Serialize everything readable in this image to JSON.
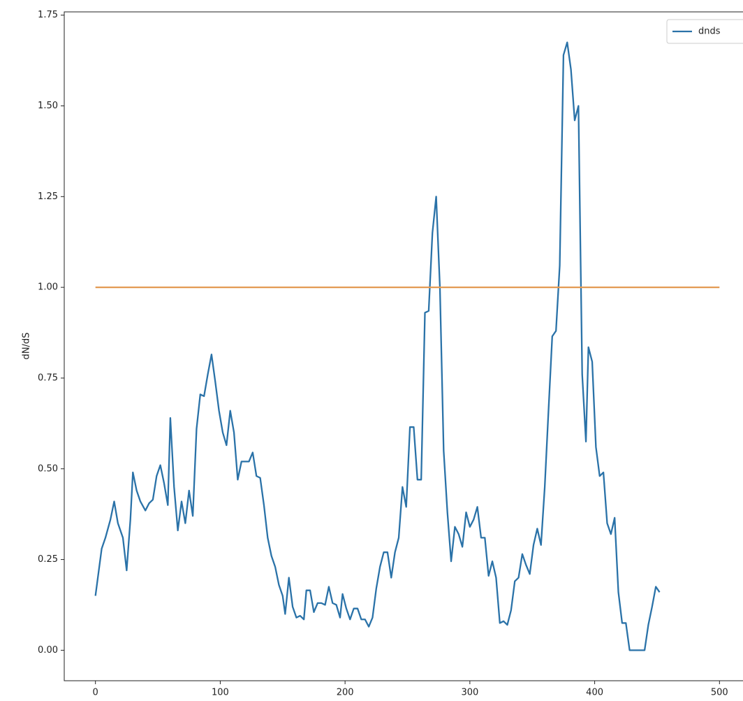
{
  "chart_data": {
    "type": "line",
    "ylabel": "dN/dS",
    "xlim": [
      -25,
      525
    ],
    "ylim": [
      -0.084,
      1.759
    ],
    "xticks": [
      0,
      100,
      200,
      300,
      400,
      500
    ],
    "yticks": [
      {
        "value": 0,
        "label": "0.00"
      },
      {
        "value": 0.25,
        "label": "0.25"
      },
      {
        "value": 0.5,
        "label": "0.50"
      },
      {
        "value": 0.75,
        "label": "0.75"
      },
      {
        "value": 1,
        "label": "1.00"
      },
      {
        "value": 1.25,
        "label": "1.25"
      },
      {
        "value": 1.5,
        "label": "1.50"
      },
      {
        "value": 1.75,
        "label": "1.75"
      }
    ],
    "legend": "upper right",
    "series": [
      {
        "name": "dnds",
        "color": "#2a72a8",
        "x": [
          0,
          5,
          8,
          12,
          15,
          18,
          22,
          25,
          28,
          30,
          33,
          36,
          40,
          43,
          46,
          49,
          52,
          55,
          58,
          60,
          63,
          66,
          69,
          72,
          75,
          78,
          81,
          84,
          87,
          90,
          93,
          96,
          99,
          102,
          105,
          108,
          111,
          114,
          117,
          120,
          123,
          126,
          129,
          132,
          135,
          138,
          141,
          144,
          147,
          150,
          152,
          155,
          158,
          161,
          164,
          167,
          169,
          172,
          175,
          178,
          181,
          184,
          187,
          190,
          193,
          196,
          198,
          201,
          204,
          207,
          210,
          213,
          216,
          219,
          222,
          225,
          228,
          231,
          234,
          237,
          240,
          243,
          246,
          249,
          252,
          255,
          258,
          261,
          264,
          267,
          270,
          273,
          276,
          279,
          282,
          285,
          288,
          291,
          294,
          297,
          300,
          303,
          306,
          309,
          312,
          315,
          318,
          321,
          324,
          327,
          330,
          333,
          336,
          339,
          342,
          345,
          348,
          351,
          354,
          357,
          360,
          363,
          366,
          369,
          372,
          375,
          378,
          381,
          384,
          387,
          390,
          393,
          395,
          398,
          401,
          404,
          407,
          410,
          413,
          416,
          419,
          422,
          425,
          428,
          431,
          434,
          437,
          440,
          443,
          446,
          449,
          452
        ],
        "values": [
          0.15,
          0.28,
          0.31,
          0.36,
          0.41,
          0.35,
          0.31,
          0.22,
          0.36,
          0.49,
          0.44,
          0.41,
          0.385,
          0.405,
          0.415,
          0.48,
          0.51,
          0.46,
          0.4,
          0.64,
          0.45,
          0.33,
          0.41,
          0.35,
          0.44,
          0.37,
          0.61,
          0.705,
          0.7,
          0.76,
          0.815,
          0.74,
          0.66,
          0.6,
          0.565,
          0.66,
          0.6,
          0.47,
          0.52,
          0.52,
          0.52,
          0.545,
          0.48,
          0.475,
          0.4,
          0.31,
          0.26,
          0.23,
          0.18,
          0.15,
          0.1,
          0.2,
          0.12,
          0.09,
          0.095,
          0.085,
          0.165,
          0.165,
          0.105,
          0.13,
          0.13,
          0.125,
          0.175,
          0.13,
          0.125,
          0.09,
          0.155,
          0.115,
          0.085,
          0.115,
          0.115,
          0.085,
          0.085,
          0.065,
          0.09,
          0.17,
          0.23,
          0.27,
          0.27,
          0.2,
          0.27,
          0.31,
          0.45,
          0.395,
          0.615,
          0.615,
          0.47,
          0.47,
          0.93,
          0.935,
          1.15,
          1.25,
          1.0,
          0.55,
          0.38,
          0.245,
          0.34,
          0.32,
          0.285,
          0.38,
          0.34,
          0.36,
          0.395,
          0.31,
          0.31,
          0.205,
          0.245,
          0.2,
          0.075,
          0.08,
          0.07,
          0.11,
          0.19,
          0.2,
          0.265,
          0.235,
          0.21,
          0.29,
          0.335,
          0.29,
          0.45,
          0.66,
          0.865,
          0.88,
          1.06,
          1.64,
          1.675,
          1.6,
          1.46,
          1.5,
          0.76,
          0.575,
          0.835,
          0.795,
          0.56,
          0.48,
          0.49,
          0.35,
          0.32,
          0.365,
          0.16,
          0.075,
          0.075,
          0,
          0,
          0,
          0,
          0,
          0.07,
          0.12,
          0.175,
          0.16
        ]
      },
      {
        "color": "#e39a52",
        "x": [
          0,
          500
        ],
        "values": [
          1,
          1
        ]
      }
    ]
  }
}
